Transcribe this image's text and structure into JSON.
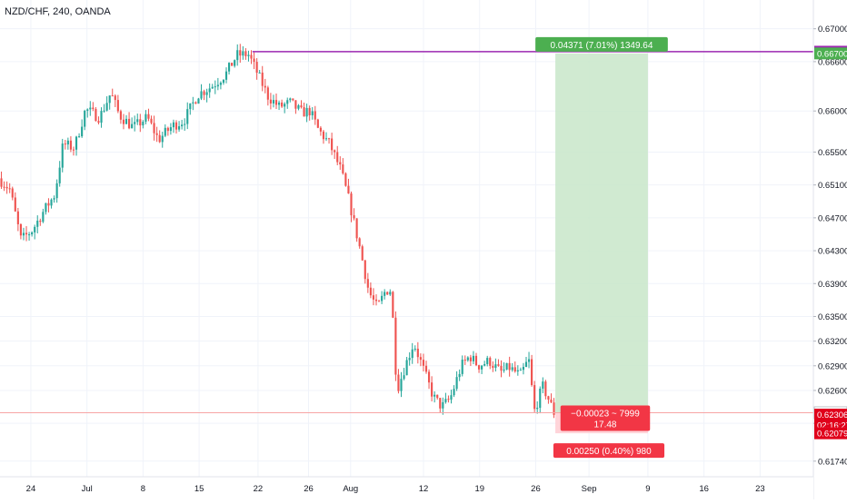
{
  "header": {
    "symbol_title": "NZD/CHF, 240, OANDA"
  },
  "colors": {
    "up": "#26a69a",
    "down": "#ef5350",
    "grid": "#f0f3fa",
    "axis_text": "#131722",
    "purple": "#9c27b0",
    "profit_fill": "#c8e6c9",
    "loss_fill": "#ffcdd2",
    "green_label": "#4caf50",
    "red_label": "#f23645",
    "price_line": "#f7a5a5",
    "dark_red_label": "#e0001b"
  },
  "chart_data": {
    "type": "candlestick",
    "title": "",
    "ylim": [
      0.6155,
      0.6735
    ],
    "y_ticks": [
      "0.67000",
      "0.66600",
      "0.66000",
      "0.65500",
      "0.65100",
      "0.64700",
      "0.64300",
      "0.63900",
      "0.63500",
      "0.63200",
      "0.62900",
      "0.62600",
      "0.62200",
      "0.61740"
    ],
    "y_tick_values": [
      0.67,
      0.666,
      0.66,
      0.655,
      0.651,
      0.647,
      0.643,
      0.639,
      0.635,
      0.632,
      0.629,
      0.626,
      0.622,
      0.6174
    ],
    "x_ticks": [
      "24",
      "Jul",
      "8",
      "15",
      "22",
      "26",
      "Aug",
      "12",
      "19",
      "26",
      "Sep",
      "9",
      "16",
      "23"
    ],
    "x_tick_values": [
      1.1,
      3.1,
      5.1,
      7.1,
      9.2,
      11.0,
      12.5,
      15.1,
      17.1,
      19.1,
      21.0,
      23.1,
      25.1,
      27.1
    ],
    "x_range": [
      0,
      29
    ],
    "time_unit": "days since Jun 23 (x positions of candles and ticks)",
    "path_points": [
      [
        0,
        0.6518
      ],
      [
        0.4,
        0.6505
      ],
      [
        0.8,
        0.6443
      ],
      [
        1.2,
        0.6455
      ],
      [
        1.6,
        0.6478
      ],
      [
        2.0,
        0.6498
      ],
      [
        2.3,
        0.656
      ],
      [
        2.7,
        0.6555
      ],
      [
        3.1,
        0.6602
      ],
      [
        3.6,
        0.6592
      ],
      [
        4.0,
        0.6622
      ],
      [
        4.3,
        0.6595
      ],
      [
        4.8,
        0.658
      ],
      [
        5.3,
        0.6592
      ],
      [
        5.7,
        0.6565
      ],
      [
        6.2,
        0.6582
      ],
      [
        6.6,
        0.6588
      ],
      [
        7.1,
        0.662
      ],
      [
        7.6,
        0.663
      ],
      [
        8.1,
        0.6645
      ],
      [
        8.5,
        0.6668
      ],
      [
        8.9,
        0.6669
      ],
      [
        9.2,
        0.6648
      ],
      [
        9.6,
        0.6618
      ],
      [
        10.0,
        0.6605
      ],
      [
        10.4,
        0.661
      ],
      [
        10.8,
        0.6598
      ],
      [
        11.1,
        0.66
      ],
      [
        11.4,
        0.6577
      ],
      [
        11.8,
        0.656
      ],
      [
        12.2,
        0.6528
      ],
      [
        12.5,
        0.649
      ],
      [
        12.9,
        0.643
      ],
      [
        13.2,
        0.638
      ],
      [
        13.5,
        0.636
      ],
      [
        13.8,
        0.6382
      ],
      [
        14.0,
        0.6382
      ],
      [
        14.2,
        0.626
      ],
      [
        14.5,
        0.629
      ],
      [
        14.8,
        0.6318
      ],
      [
        15.1,
        0.629
      ],
      [
        15.5,
        0.6252
      ],
      [
        15.8,
        0.624
      ],
      [
        16.1,
        0.625
      ],
      [
        16.5,
        0.629
      ],
      [
        16.8,
        0.6302
      ],
      [
        17.1,
        0.629
      ],
      [
        17.5,
        0.6296
      ],
      [
        17.9,
        0.6282
      ],
      [
        18.2,
        0.6288
      ],
      [
        18.6,
        0.6278
      ],
      [
        18.9,
        0.6298
      ],
      [
        19.1,
        0.6235
      ],
      [
        19.4,
        0.6265
      ],
      [
        19.6,
        0.625
      ],
      [
        19.8,
        0.6233
      ]
    ],
    "annotations": {
      "prior_high_price": 0.66721,
      "prior_high_x_start": 9.0,
      "position": {
        "x_start": 19.8,
        "x_end": 23.1,
        "entry": 0.62329,
        "target": 0.667,
        "stop": 0.62079
      },
      "target_label": "0.04371 (7.01%) 1349.64",
      "stop_label": "0.00250 (0.40%) 980",
      "pnl_label_line1": "−0.00023 ~ 7999",
      "pnl_label_line2": "17.48",
      "price_axis_labels": [
        {
          "text": "0.66721",
          "value": 0.66721,
          "color": "purple"
        },
        {
          "text": "0.66700",
          "value": 0.667,
          "color": "green"
        },
        {
          "text": "0.62329",
          "value": 0.62329,
          "color": "dark"
        },
        {
          "text": "0.62306",
          "value": 0.62306,
          "color": "red"
        },
        {
          "text": "02:16:27",
          "value": 0.6218,
          "color": "red"
        },
        {
          "text": "0.62079",
          "value": 0.62079,
          "color": "red"
        }
      ]
    }
  }
}
